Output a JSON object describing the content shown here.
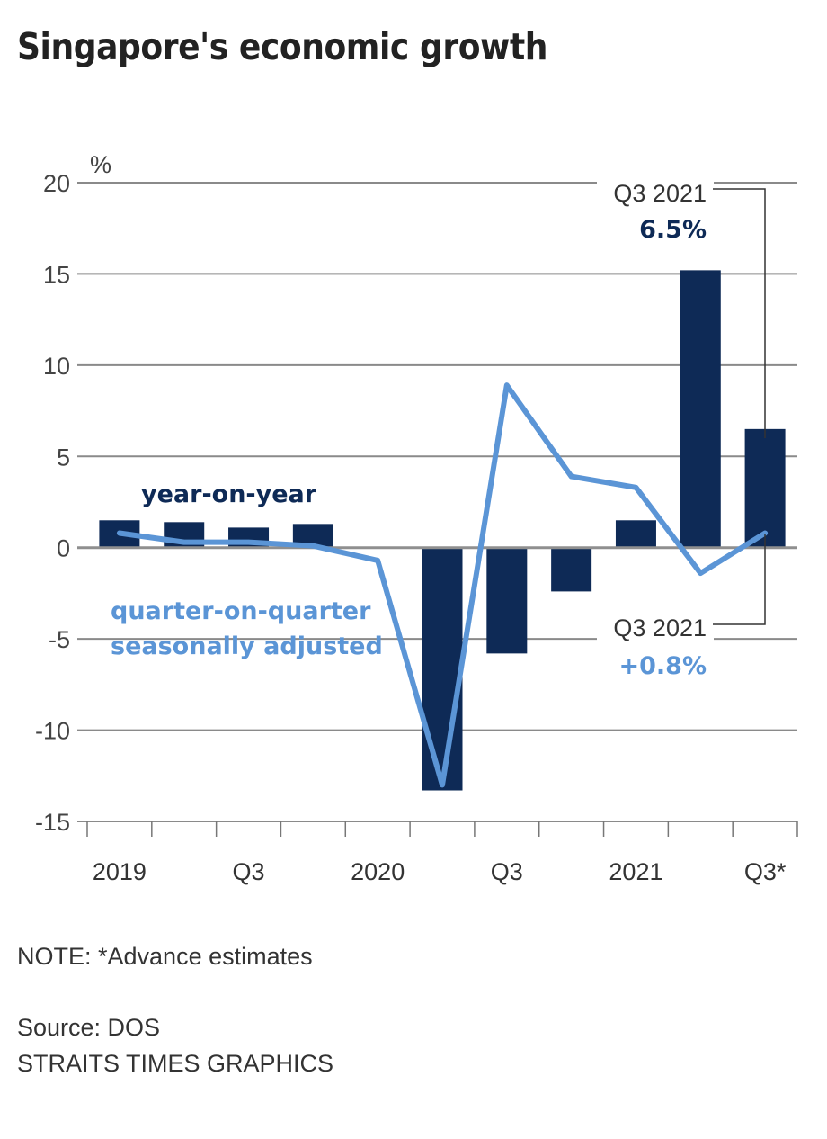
{
  "title": "Singapore's economic growth",
  "note": "NOTE: *Advance estimates",
  "source_lines": [
    "Source: DOS",
    "STRAITS TIMES GRAPHICS"
  ],
  "colors": {
    "bar": "#0e2a56",
    "line": "#5b95d6",
    "grid": "#8a8a8a",
    "text": "#333333"
  },
  "chart_data": {
    "type": "bar",
    "title": "Singapore's economic growth",
    "ylabel": "%",
    "xlabel": "",
    "ylim": [
      -15,
      20
    ],
    "yticks": [
      20,
      15,
      10,
      5,
      0,
      -5,
      -10,
      -15
    ],
    "grid": true,
    "categories": [
      "Q1 2019",
      "Q2 2019",
      "Q3 2019",
      "Q4 2019",
      "Q1 2020",
      "Q2 2020",
      "Q3 2020",
      "Q4 2020",
      "Q1 2021",
      "Q2 2021",
      "Q3 2021"
    ],
    "xtick_labels": [
      {
        "index": 0,
        "label": "2019"
      },
      {
        "index": 2,
        "label": "Q3"
      },
      {
        "index": 4,
        "label": "2020"
      },
      {
        "index": 6,
        "label": "Q3"
      },
      {
        "index": 8,
        "label": "2021"
      },
      {
        "index": 10,
        "label": "Q3*"
      }
    ],
    "series": [
      {
        "name": "year-on-year",
        "type": "bar",
        "values": [
          1.5,
          1.4,
          1.1,
          1.3,
          0.0,
          -13.3,
          -5.8,
          -2.4,
          1.5,
          15.2,
          6.5
        ]
      },
      {
        "name": "quarter-on-quarter seasonally adjusted",
        "type": "line",
        "values": [
          0.8,
          0.3,
          0.3,
          0.1,
          -0.7,
          -13.0,
          8.9,
          3.9,
          3.3,
          -1.4,
          0.8
        ]
      }
    ],
    "legend_labels": {
      "bar": "year-on-year",
      "line_1": "quarter-on-quarter",
      "line_2": "seasonally adjusted"
    },
    "annotations": [
      {
        "series": "year-on-year",
        "index": 10,
        "label": "Q3 2021",
        "value_label": "6.5%"
      },
      {
        "series": "quarter-on-quarter seasonally adjusted",
        "index": 10,
        "label": "Q3 2021",
        "value_label": "+0.8%"
      }
    ]
  }
}
